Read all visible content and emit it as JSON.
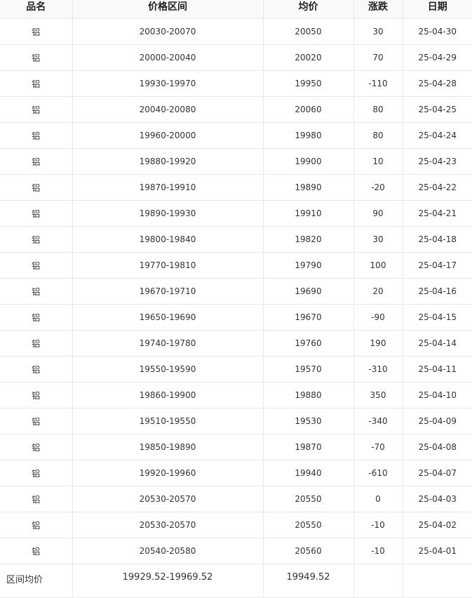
{
  "headers": [
    "品名",
    "价格区间",
    "均价",
    "涨跌",
    "日期"
  ],
  "rows": [
    [
      "铝",
      "20030-20070",
      "20050",
      "30",
      "25-04-30"
    ],
    [
      "铝",
      "20000-20040",
      "20020",
      "70",
      "25-04-29"
    ],
    [
      "铝",
      "19930-19970",
      "19950",
      "-110",
      "25-04-28"
    ],
    [
      "铝",
      "20040-20080",
      "20060",
      "80",
      "25-04-25"
    ],
    [
      "铝",
      "19960-20000",
      "19980",
      "80",
      "25-04-24"
    ],
    [
      "铝",
      "19880-19920",
      "19900",
      "10",
      "25-04-23"
    ],
    [
      "铝",
      "19870-19910",
      "19890",
      "-20",
      "25-04-22"
    ],
    [
      "铝",
      "19890-19930",
      "19910",
      "90",
      "25-04-21"
    ],
    [
      "铝",
      "19800-19840",
      "19820",
      "30",
      "25-04-18"
    ],
    [
      "铝",
      "19770-19810",
      "19790",
      "100",
      "25-04-17"
    ],
    [
      "铝",
      "19670-19710",
      "19690",
      "20",
      "25-04-16"
    ],
    [
      "铝",
      "19650-19690",
      "19670",
      "-90",
      "25-04-15"
    ],
    [
      "铝",
      "19740-19780",
      "19760",
      "190",
      "25-04-14"
    ],
    [
      "铝",
      "19550-19590",
      "19570",
      "-310",
      "25-04-11"
    ],
    [
      "铝",
      "19860-19900",
      "19880",
      "350",
      "25-04-10"
    ],
    [
      "铝",
      "19510-19550",
      "19530",
      "-340",
      "25-04-09"
    ],
    [
      "铝",
      "19850-19890",
      "19870",
      "-70",
      "25-04-08"
    ],
    [
      "铝",
      "19920-19960",
      "19940",
      "-610",
      "25-04-07"
    ],
    [
      "铝",
      "20530-20570",
      "20550",
      "0",
      "25-04-03"
    ],
    [
      "铝",
      "20530-20570",
      "20550",
      "-10",
      "25-04-02"
    ],
    [
      "铝",
      "20540-20580",
      "20560",
      "-10",
      "25-04-01"
    ]
  ],
  "footer": {
    "label": "区间均价",
    "range": "19929.52-19969.52",
    "avg": "19949.52"
  }
}
